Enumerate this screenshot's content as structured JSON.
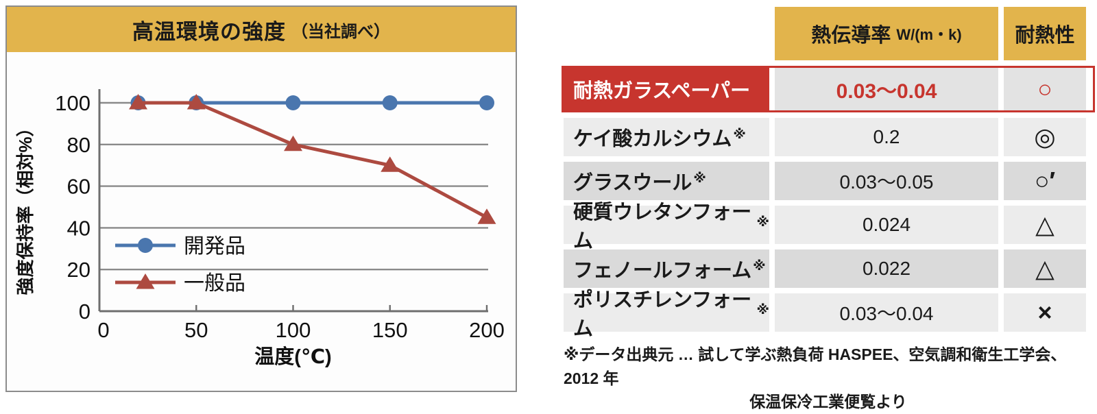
{
  "colors": {
    "accent_gold": "#e2b44c",
    "highlight_red": "#c7352e",
    "series_blue": "#4a76ae",
    "series_red": "#ad4a40",
    "gridline_gray": "#8a8a8a"
  },
  "chart_data": [
    {
      "type": "line",
      "title": "高温環境の強度（当社調べ）",
      "title_main": "高温環境の強度",
      "title_sub": "（当社調べ）",
      "xlabel": "温度(℃)",
      "ylabel": "強度保持率（相対%）",
      "x": [
        20,
        50,
        100,
        150,
        200
      ],
      "series": [
        {
          "name": "開発品",
          "marker": "circle",
          "color": "#4a76ae",
          "values": [
            100,
            100,
            100,
            100,
            100
          ]
        },
        {
          "name": "一般品",
          "marker": "triangle",
          "color": "#ad4a40",
          "values": [
            100,
            100,
            80,
            70,
            45
          ]
        }
      ],
      "xlim": [
        0,
        200
      ],
      "ylim": [
        0,
        100
      ],
      "x_ticks": [
        0,
        50,
        100,
        150,
        200
      ],
      "y_ticks": [
        0,
        20,
        40,
        60,
        80,
        100
      ],
      "grid": "horizontal",
      "legend_position": "inside-lower-left"
    },
    {
      "type": "table",
      "header": {
        "conductivity_label": "熱伝導率",
        "conductivity_unit": "W/(m・k)",
        "heat_resistance_label": "耐熱性"
      },
      "rows": [
        {
          "name": "耐熱ガラスペーパー",
          "note": "",
          "value": "0.03〜0.04",
          "rating": "○",
          "highlight": true
        },
        {
          "name": "ケイ酸カルシウム",
          "note": "※",
          "value": "0.2",
          "rating": "◎"
        },
        {
          "name": "グラスウール",
          "note": "※",
          "value": "0.03〜0.05",
          "rating": "○′"
        },
        {
          "name": "硬質ウレタンフォーム",
          "note": "※",
          "value": "0.024",
          "rating": "△"
        },
        {
          "name": "フェノールフォーム",
          "note": "※",
          "value": "0.022",
          "rating": "△"
        },
        {
          "name": "ポリスチレンフォーム",
          "note": "※",
          "value": "0.03〜0.04",
          "rating": "×"
        }
      ],
      "footnote_line1": "※データ出典元 … 試して学ぶ熱負荷 HASPEE、空気調和衛生工学会、2012 年",
      "footnote_line2": "保温保冷工業便覧より"
    }
  ]
}
